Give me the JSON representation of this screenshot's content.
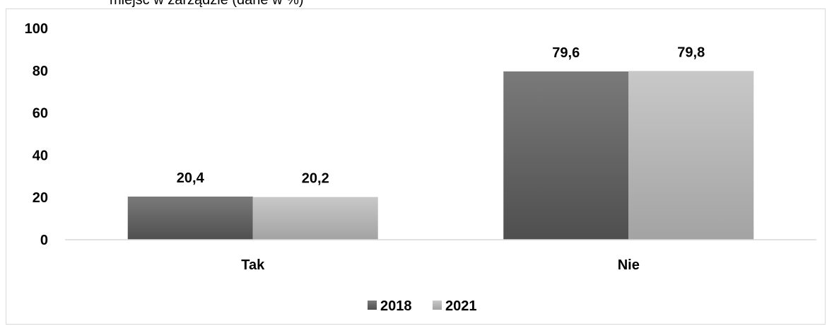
{
  "chart_data": {
    "type": "bar",
    "title": "miejsc w zarządzie (dane w %)",
    "categories": [
      "Tak",
      "Nie"
    ],
    "series": [
      {
        "name": "2018",
        "values": [
          20.4,
          79.6
        ],
        "labels": [
          "20,4",
          "79,6"
        ],
        "color_top": "#7a7a7a",
        "color_bottom": "#4f4f4f"
      },
      {
        "name": "2021",
        "values": [
          20.2,
          79.8
        ],
        "labels": [
          "20,2",
          "79,8"
        ],
        "color_top": "#c8c8c8",
        "color_bottom": "#a3a3a3"
      }
    ],
    "ylim": [
      0,
      100
    ],
    "yticks": [
      "0",
      "20",
      "40",
      "60",
      "80",
      "100"
    ],
    "xlabel": "",
    "ylabel": "",
    "grid": false,
    "legend": "bottom-center"
  }
}
